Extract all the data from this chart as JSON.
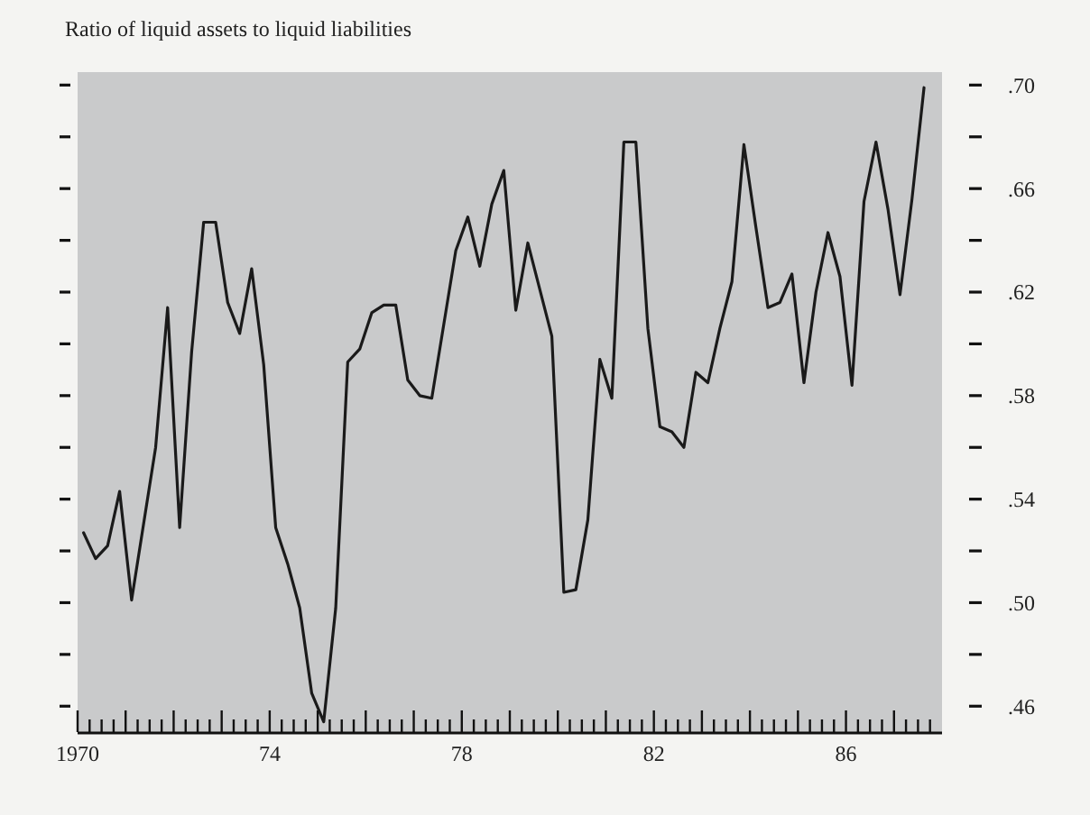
{
  "chart_data": {
    "type": "line",
    "title": "Ratio of liquid assets to liquid liabilities",
    "x": [
      1970.125,
      1970.375,
      1970.625,
      1970.875,
      1971.125,
      1971.625,
      1971.875,
      1972.125,
      1972.375,
      1972.625,
      1972.875,
      1973.125,
      1973.375,
      1973.625,
      1973.875,
      1974.125,
      1974.375,
      1974.625,
      1974.875,
      1975.125,
      1975.375,
      1975.625,
      1975.875,
      1976.125,
      1976.375,
      1976.625,
      1976.875,
      1977.125,
      1977.375,
      1977.875,
      1978.125,
      1978.375,
      1978.625,
      1978.875,
      1979.125,
      1979.375,
      1979.875,
      1980.125,
      1980.375,
      1980.625,
      1980.875,
      1981.125,
      1981.375,
      1981.625,
      1981.875,
      1982.125,
      1982.375,
      1982.625,
      1982.875,
      1983.125,
      1983.375,
      1983.625,
      1983.875,
      1984.125,
      1984.375,
      1984.625,
      1984.875,
      1985.125,
      1985.375,
      1985.625,
      1985.875,
      1986.125,
      1986.375,
      1986.625,
      1986.875,
      1987.125,
      1987.375,
      1987.625
    ],
    "series": [
      {
        "color": "#1a1a1a",
        "values": [
          0.527,
          0.517,
          0.522,
          0.543,
          0.501,
          0.56,
          0.614,
          0.529,
          0.597,
          0.647,
          0.647,
          0.616,
          0.604,
          0.629,
          0.592,
          0.529,
          0.515,
          0.498,
          0.465,
          0.454,
          0.498,
          0.593,
          0.598,
          0.612,
          0.615,
          0.615,
          0.586,
          0.58,
          0.579,
          0.636,
          0.649,
          0.63,
          0.654,
          0.667,
          0.613,
          0.639,
          0.603,
          0.504,
          0.505,
          0.532,
          0.594,
          0.579,
          0.678,
          0.678,
          0.606,
          0.568,
          0.566,
          0.56,
          0.589,
          0.585,
          0.606,
          0.624,
          0.677,
          0.645,
          0.614,
          0.616,
          0.627,
          0.585,
          0.62,
          0.643,
          0.626,
          0.584,
          0.655,
          0.678,
          0.652,
          0.619,
          0.656,
          0.699
        ]
      }
    ],
    "xlim": [
      1970,
      1988
    ],
    "ylim": [
      0.45,
      0.705
    ],
    "xticks": [
      {
        "value": 1970,
        "label": "1970"
      },
      {
        "value": 1971,
        "label": null
      },
      {
        "value": 1972,
        "label": null
      },
      {
        "value": 1973,
        "label": null
      },
      {
        "value": 1974,
        "label": "74"
      },
      {
        "value": 1975,
        "label": null
      },
      {
        "value": 1976,
        "label": null
      },
      {
        "value": 1977,
        "label": null
      },
      {
        "value": 1978,
        "label": "78"
      },
      {
        "value": 1979,
        "label": null
      },
      {
        "value": 1980,
        "label": null
      },
      {
        "value": 1981,
        "label": null
      },
      {
        "value": 1982,
        "label": "82"
      },
      {
        "value": 1983,
        "label": null
      },
      {
        "value": 1984,
        "label": null
      },
      {
        "value": 1985,
        "label": null
      },
      {
        "value": 1986,
        "label": "86"
      },
      {
        "value": 1987,
        "label": null
      }
    ],
    "yticks": [
      {
        "value": 0.46,
        "label": ".46"
      },
      {
        "value": 0.48,
        "label": null
      },
      {
        "value": 0.5,
        "label": ".50"
      },
      {
        "value": 0.52,
        "label": null
      },
      {
        "value": 0.54,
        "label": ".54"
      },
      {
        "value": 0.56,
        "label": null
      },
      {
        "value": 0.58,
        "label": ".58"
      },
      {
        "value": 0.6,
        "label": null
      },
      {
        "value": 0.62,
        "label": ".62"
      },
      {
        "value": 0.64,
        "label": null
      },
      {
        "value": 0.66,
        "label": ".66"
      },
      {
        "value": 0.68,
        "label": null
      },
      {
        "value": 0.7,
        "label": ".70"
      }
    ],
    "grid": false,
    "marker": "none",
    "line_style": "solid"
  }
}
